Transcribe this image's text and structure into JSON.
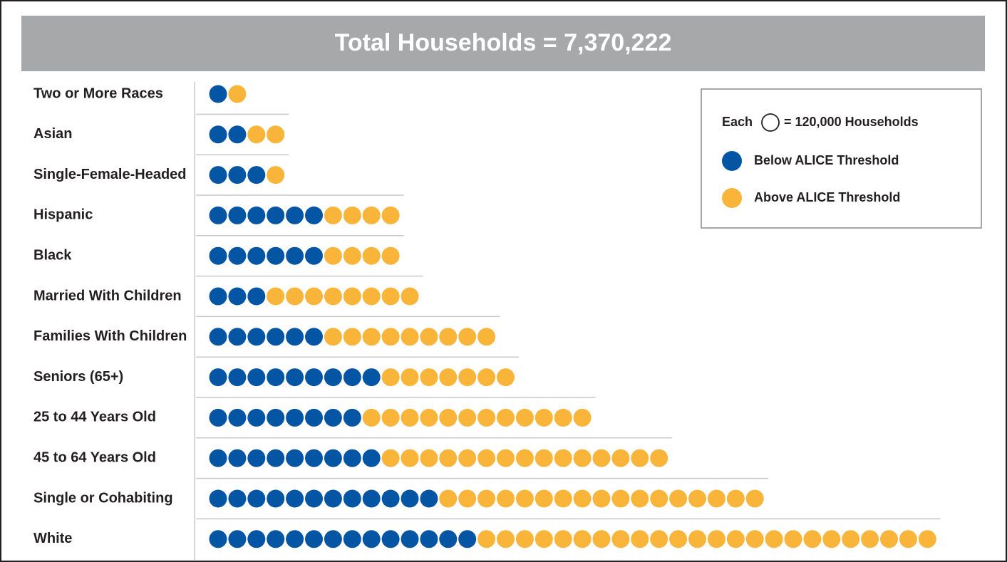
{
  "chart_data": {
    "type": "pictogram",
    "title": "Total Households = 7,370,222",
    "legend_unit": {
      "prefix": "Each",
      "text": "= 120,000 Households"
    },
    "categories": [
      "Two or More Races",
      "Asian",
      "Single-Female-Headed",
      "Hispanic",
      "Black",
      "Married With Children",
      "Families With Children",
      "Seniors (65+)",
      "25 to 44 Years Old",
      "45 to 64 Years Old",
      "Single or Cohabiting",
      "White"
    ],
    "series": [
      {
        "name": "Below ALICE Threshold",
        "color": "#0455a4",
        "values": [
          1,
          2,
          3,
          6,
          6,
          3,
          6,
          9,
          8,
          9,
          12,
          14
        ]
      },
      {
        "name": "Above ALICE Threshold",
        "color": "#f9b43a",
        "values": [
          1,
          2,
          1,
          4,
          4,
          8,
          9,
          7,
          12,
          15,
          17,
          24
        ]
      }
    ]
  }
}
